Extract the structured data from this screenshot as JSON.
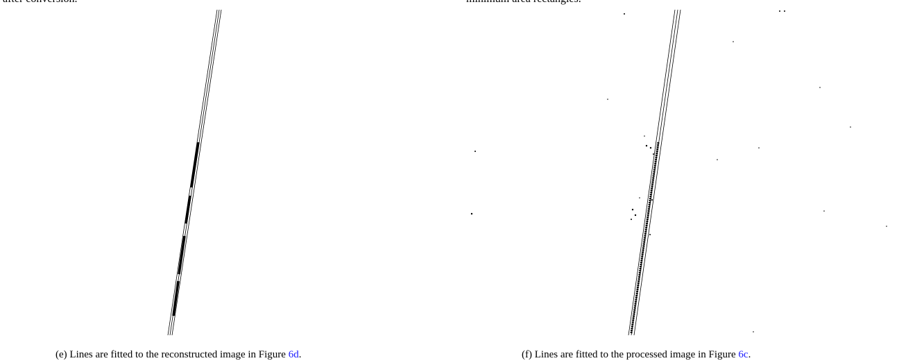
{
  "top_fragments": [
    "after conversion.",
    "minimum area rectangles."
  ],
  "captions": [
    {
      "label": "(e)",
      "text": "Lines are fitted to the reconstructed image in Figure",
      "ref": "6d",
      "end": "."
    },
    {
      "label": "(f)",
      "text": "Lines are fitted to the processed image in Figure",
      "ref": "6c",
      "end": "."
    }
  ]
}
